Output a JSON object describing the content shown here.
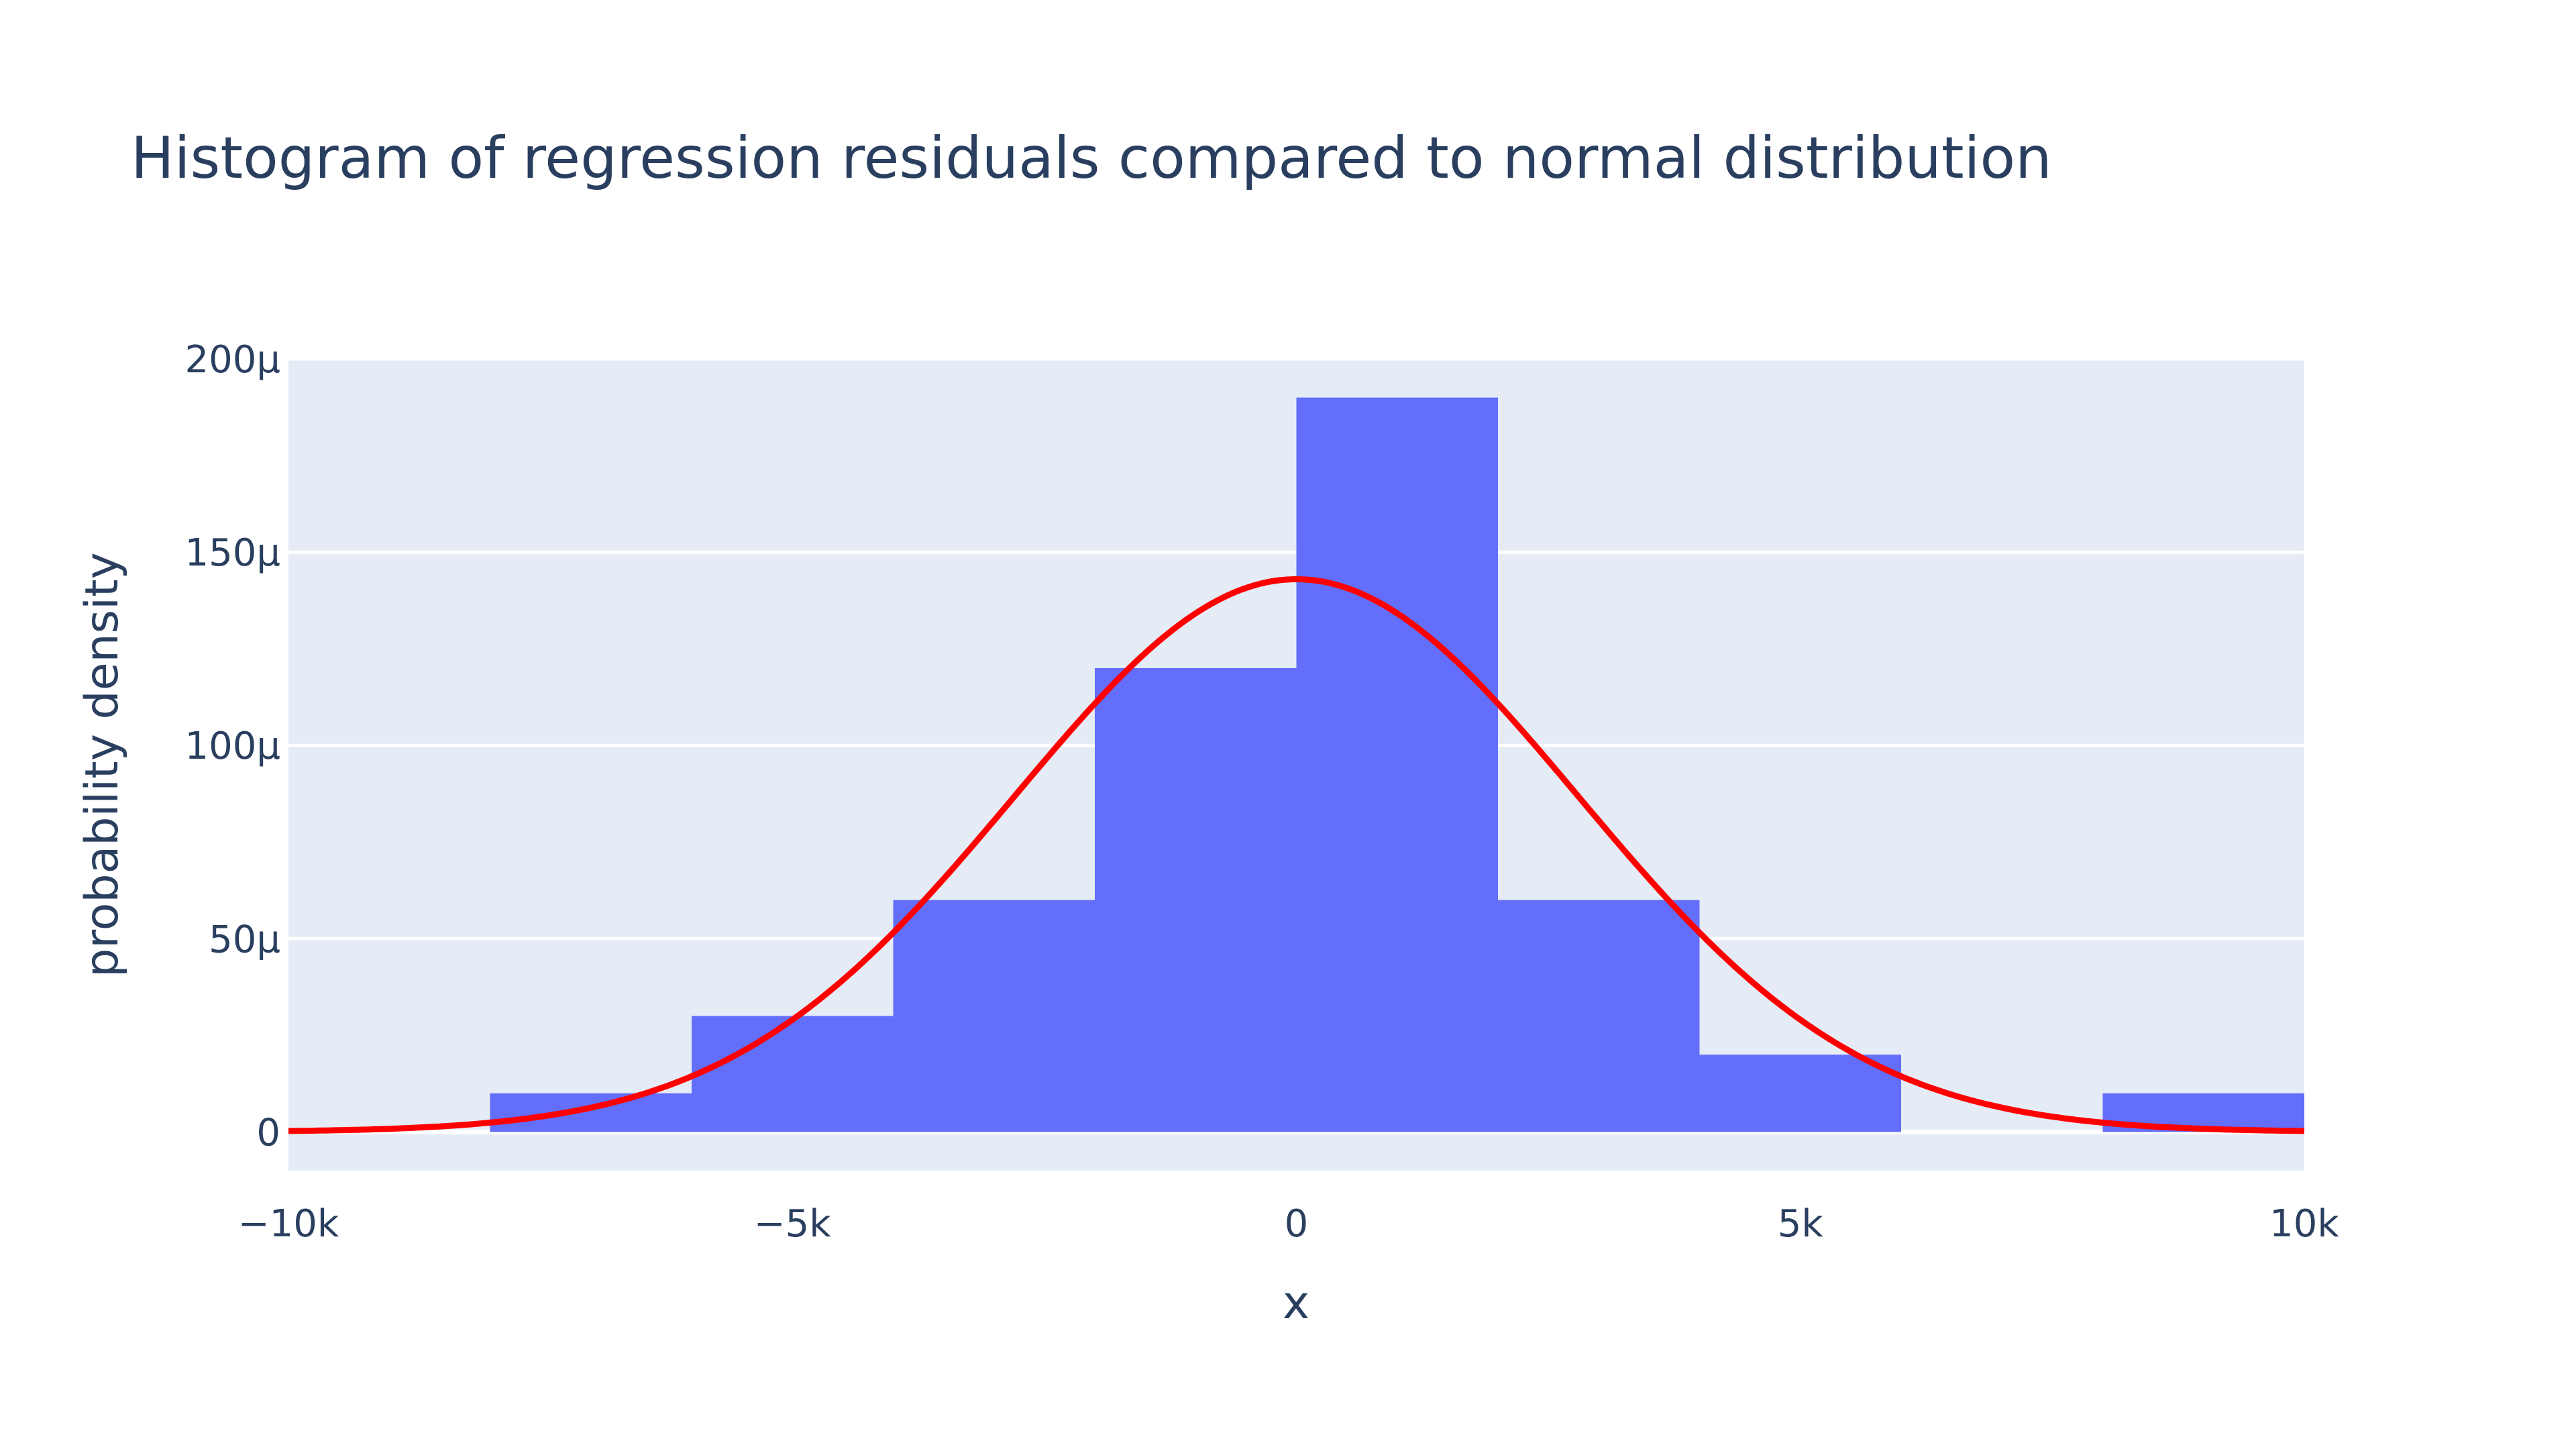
{
  "chart_data": {
    "type": "bar",
    "title": "Histogram of regression residuals compared to normal distribution",
    "xlabel": "x",
    "ylabel": "probability density",
    "xlim": [
      -10000,
      10000
    ],
    "ylim": [
      -1e-05,
      0.0002
    ],
    "x_ticks": [
      -10000,
      -5000,
      0,
      5000,
      10000
    ],
    "x_tick_labels": [
      "−10k",
      "−5k",
      "0",
      "5k",
      "10k"
    ],
    "y_ticks": [
      0,
      5e-05,
      0.0001,
      0.00015,
      0.0002
    ],
    "y_tick_labels": [
      "0",
      "50μ",
      "100μ",
      "150μ",
      "200μ"
    ],
    "grid": true,
    "legend": "none",
    "histogram": {
      "bins": [
        {
          "x0": -8000,
          "x1": -6000,
          "density": 1e-05
        },
        {
          "x0": -6000,
          "x1": -4000,
          "density": 3e-05
        },
        {
          "x0": -4000,
          "x1": -2000,
          "density": 6e-05
        },
        {
          "x0": -2000,
          "x1": 0,
          "density": 0.00012
        },
        {
          "x0": 0,
          "x1": 2000,
          "density": 0.00019
        },
        {
          "x0": 2000,
          "x1": 4000,
          "density": 6e-05
        },
        {
          "x0": 4000,
          "x1": 6000,
          "density": 2e-05
        },
        {
          "x0": 8000,
          "x1": 10000,
          "density": 1e-05
        }
      ],
      "color": "#636efa"
    },
    "normal_curve": {
      "mean": 0,
      "std": 2800,
      "peak_density": 0.000143,
      "color": "#ff0000"
    }
  }
}
